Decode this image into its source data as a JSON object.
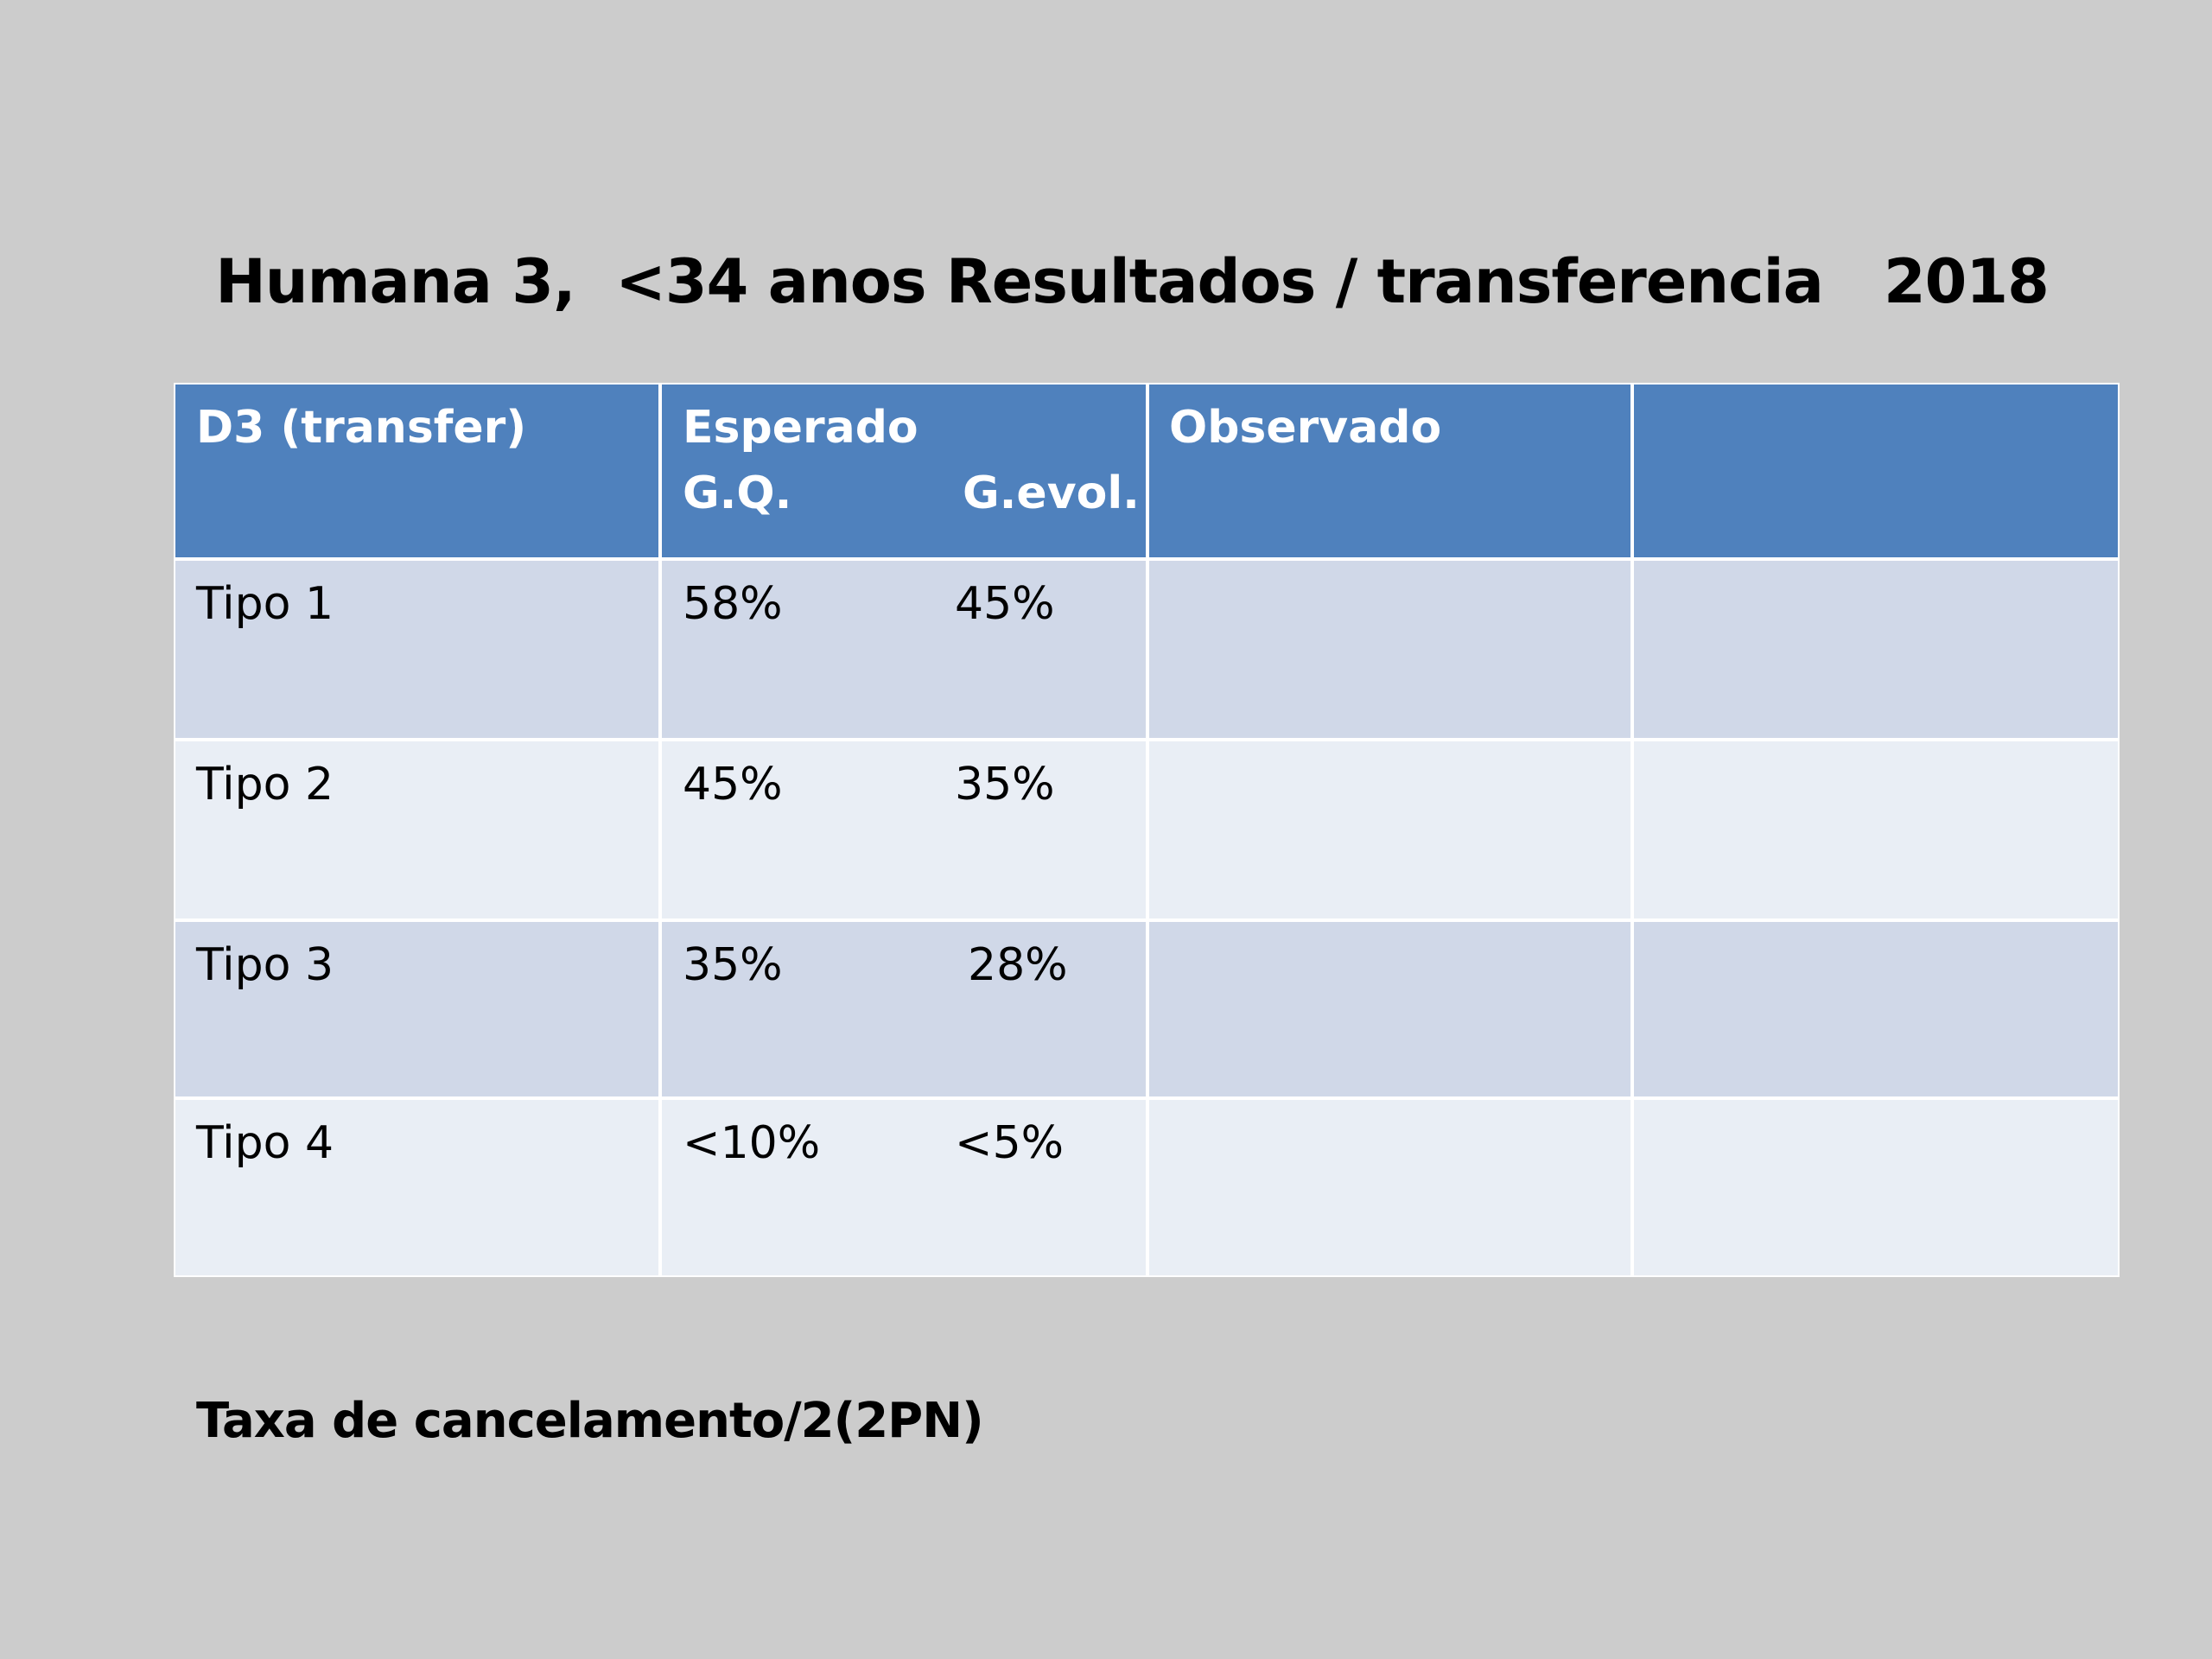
{
  "title": "Humana 3,  <34 anos Resultados / transferencia   2018",
  "table": {
    "header": {
      "first": "D3 (transfer)",
      "expected": "Esperado",
      "expected_sub": [
        "G.Q.",
        "G.evol."
      ],
      "observed": "Observado"
    },
    "rows": [
      [
        "Tipo 1",
        "58%",
        "45%"
      ],
      [
        "Tipo 2",
        "45%",
        "35%"
      ],
      [
        "Tipo 3",
        "35%",
        "28%"
      ],
      [
        "Tipo 4",
        "<10%",
        "<5%"
      ]
    ]
  },
  "footer": "Taxa de cancelamento/2(2PN)"
}
